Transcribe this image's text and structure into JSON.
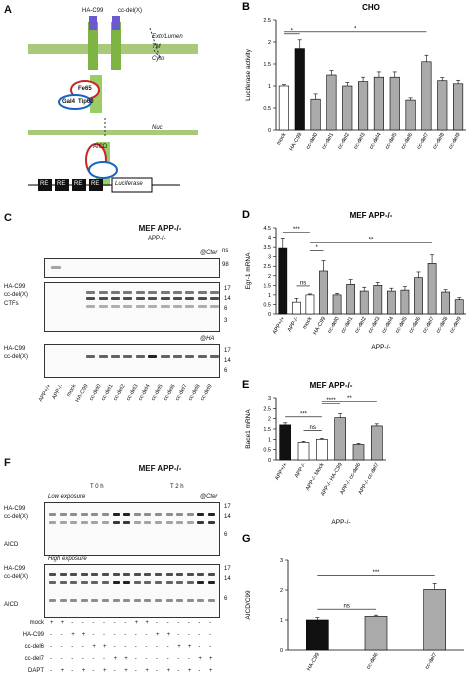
{
  "panels": {
    "a": {
      "label": "A",
      "ha": "HA-C99",
      "cc": "cc-del(X)",
      "extra": "Extr/Lumen",
      "tm": "TM",
      "cyto": "Cyto",
      "nuc": "Nuc",
      "app": "APP",
      "aicd": "AICD",
      "fe65": "Fe65",
      "tip60": "Tip60",
      "gal4": "Gal4",
      "re": "RE",
      "luc": "Luciferase",
      "gamma": "γ"
    },
    "c": {
      "label": "C",
      "title": "MEF APP-/-",
      "sub": "APP-/-",
      "cter": "@Cter",
      "ha_tag": "@HA",
      "ns": "ns",
      "m98": "98",
      "m17": "17",
      "m14": "14",
      "m6": "6",
      "m3": "3",
      "lbl_ha": "HA-C99",
      "lbl_cc": "cc-del(X)",
      "lbl_ctf": "CTFs",
      "lanes": [
        "APP+/+",
        "APP-/-",
        "mock",
        "HA-C99",
        "cc-del0",
        "cc-del1",
        "cc-del2",
        "cc-del3",
        "cc-del4",
        "cc-del5",
        "cc-del6",
        "cc-del7",
        "cc-del8",
        "cc-del9"
      ]
    },
    "f": {
      "label": "F",
      "title": "MEF APP-/-",
      "t0": "T 0 h",
      "t2": "T 2 h",
      "low": "Low exposure",
      "high": "High exposure",
      "cter": "@Cter",
      "lbl_ha": "HA-C99",
      "lbl_cc": "cc-del(X)",
      "lbl_aicd": "AICD",
      "m17": "17",
      "m14": "14",
      "m6": "6",
      "rows": [
        {
          "name": "mock",
          "v": [
            "+",
            "+",
            "-",
            "-",
            "-",
            "-",
            "-",
            "-",
            "+",
            "+",
            "-",
            "-",
            "-",
            "-",
            "-",
            "-"
          ]
        },
        {
          "name": "HA-C99",
          "v": [
            "-",
            "-",
            "+",
            "+",
            "-",
            "-",
            "-",
            "-",
            "-",
            "-",
            "+",
            "+",
            "-",
            "-",
            "-",
            "-"
          ]
        },
        {
          "name": "cc-del6",
          "v": [
            "-",
            "-",
            "-",
            "-",
            "+",
            "+",
            "-",
            "-",
            "-",
            "-",
            "-",
            "-",
            "+",
            "+",
            "-",
            "-"
          ]
        },
        {
          "name": "cc-del7",
          "v": [
            "-",
            "-",
            "-",
            "-",
            "-",
            "-",
            "+",
            "+",
            "-",
            "-",
            "-",
            "-",
            "-",
            "-",
            "+",
            "+"
          ]
        },
        {
          "name": "DAPT",
          "v": [
            "-",
            "+",
            "-",
            "+",
            "-",
            "+",
            "-",
            "+",
            "-",
            "+",
            "-",
            "+",
            "-",
            "+",
            "-",
            "+"
          ]
        }
      ]
    }
  },
  "chart_data": [
    {
      "panel": "B",
      "type": "bar",
      "title": "CHO",
      "ylabel": "Luciferase activity",
      "ylim": [
        0,
        2.5
      ],
      "yticks": [
        "0",
        "0.5",
        "1",
        "1.5",
        "2",
        "2.5"
      ],
      "categories": [
        "mock",
        "HA-C99",
        "cc-del0",
        "cc-del1",
        "cc-del2",
        "cc-del3",
        "cc-del4",
        "cc-del5",
        "cc-del6",
        "cc-del7",
        "cc-del8",
        "cc-del9"
      ],
      "values": [
        1.0,
        1.85,
        0.7,
        1.25,
        1.0,
        1.1,
        1.2,
        1.2,
        0.68,
        1.55,
        1.12,
        1.05
      ],
      "errors": [
        0.03,
        0.2,
        0.12,
        0.1,
        0.08,
        0.1,
        0.12,
        0.12,
        0.05,
        0.15,
        0.07,
        0.08
      ],
      "colors": [
        "white",
        "black",
        "gray",
        "gray",
        "gray",
        "gray",
        "gray",
        "gray",
        "gray",
        "gray",
        "gray",
        "gray"
      ],
      "sig": [
        {
          "from": 0,
          "to": 1,
          "text": "*"
        },
        {
          "from": 0,
          "to": 9,
          "text": "*"
        }
      ]
    },
    {
      "panel": "D",
      "type": "bar",
      "title": "MEF APP-/-",
      "ylabel": "Egr-1 mRNA",
      "xlabel": "APP-/-",
      "ylim": [
        0,
        4.5
      ],
      "yticks": [
        "0",
        "0.5",
        "1",
        "1.5",
        "2",
        "2.5",
        "3",
        "3.5",
        "4",
        "4.5"
      ],
      "categories": [
        "APP+/+",
        "APP-/-",
        "mock",
        "HA-C99",
        "cc-del0",
        "cc-del1",
        "cc-del2",
        "cc-del3",
        "cc-del4",
        "cc-del5",
        "cc-del6",
        "cc-del7",
        "cc-del8",
        "cc-del9"
      ],
      "values": [
        3.45,
        0.62,
        1.0,
        2.25,
        1.0,
        1.55,
        1.2,
        1.5,
        1.2,
        1.25,
        1.9,
        2.65,
        1.15,
        0.75
      ],
      "errors": [
        0.5,
        0.2,
        0.05,
        0.55,
        0.08,
        0.25,
        0.2,
        0.15,
        0.15,
        0.18,
        0.3,
        0.45,
        0.12,
        0.1
      ],
      "colors": [
        "black",
        "white",
        "white",
        "gray",
        "gray",
        "gray",
        "gray",
        "gray",
        "gray",
        "gray",
        "gray",
        "gray",
        "gray",
        "gray"
      ],
      "sig": [
        {
          "from": 0,
          "to": 2,
          "text": "***"
        },
        {
          "from": 1,
          "to": 2,
          "text": "ns"
        },
        {
          "from": 2,
          "to": 3,
          "text": "*"
        },
        {
          "from": 2,
          "to": 11,
          "text": "**"
        }
      ]
    },
    {
      "panel": "E",
      "type": "bar",
      "title": "MEF APP-/-",
      "ylabel": "Bace1 mRNA",
      "xlabel": "APP-/-",
      "ylim": [
        0,
        3
      ],
      "yticks": [
        "0",
        "0.5",
        "1",
        "1.5",
        "2",
        "2.5",
        "3"
      ],
      "categories": [
        "APP+/+",
        "APP-/-",
        "APP-/- Mock",
        "APP-/- HA-C99",
        "APP-/- cc-del6",
        "APP-/- cc-del7"
      ],
      "values": [
        1.7,
        0.85,
        1.0,
        2.05,
        0.75,
        1.65
      ],
      "errors": [
        0.1,
        0.05,
        0.05,
        0.2,
        0.05,
        0.1
      ],
      "colors": [
        "black",
        "white",
        "white",
        "gray",
        "gray",
        "gray"
      ],
      "sig": [
        {
          "from": 0,
          "to": 2,
          "text": "***"
        },
        {
          "from": 1,
          "to": 2,
          "text": "ns"
        },
        {
          "from": 2,
          "to": 3,
          "text": "****"
        },
        {
          "from": 2,
          "to": 5,
          "text": "**"
        }
      ]
    },
    {
      "panel": "G",
      "type": "bar",
      "ylabel": "AICD/C99",
      "ylim": [
        0,
        3
      ],
      "yticks": [
        "0",
        "1",
        "2",
        "3"
      ],
      "categories": [
        "HA-C99",
        "cc-del6",
        "cc-del7"
      ],
      "values": [
        1.0,
        1.12,
        2.02
      ],
      "errors": [
        0.08,
        0.04,
        0.2
      ],
      "colors": [
        "black",
        "gray",
        "gray"
      ],
      "sig": [
        {
          "from": 0,
          "to": 1,
          "text": "ns"
        },
        {
          "from": 0,
          "to": 2,
          "text": "***"
        }
      ]
    }
  ]
}
